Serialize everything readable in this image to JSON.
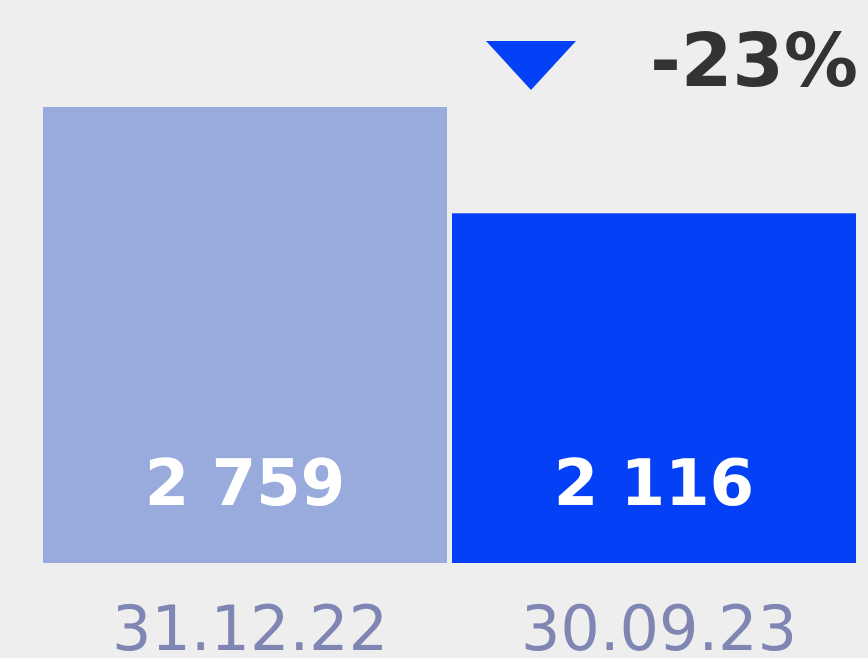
{
  "chart_data": {
    "type": "bar",
    "categories": [
      "31.12.22",
      "30.09.23"
    ],
    "values": [
      2759,
      2116
    ],
    "value_labels": [
      "2 759",
      "2 116"
    ],
    "colors": [
      "#99aadd",
      "#0440f5"
    ],
    "annotation": "-23%"
  }
}
